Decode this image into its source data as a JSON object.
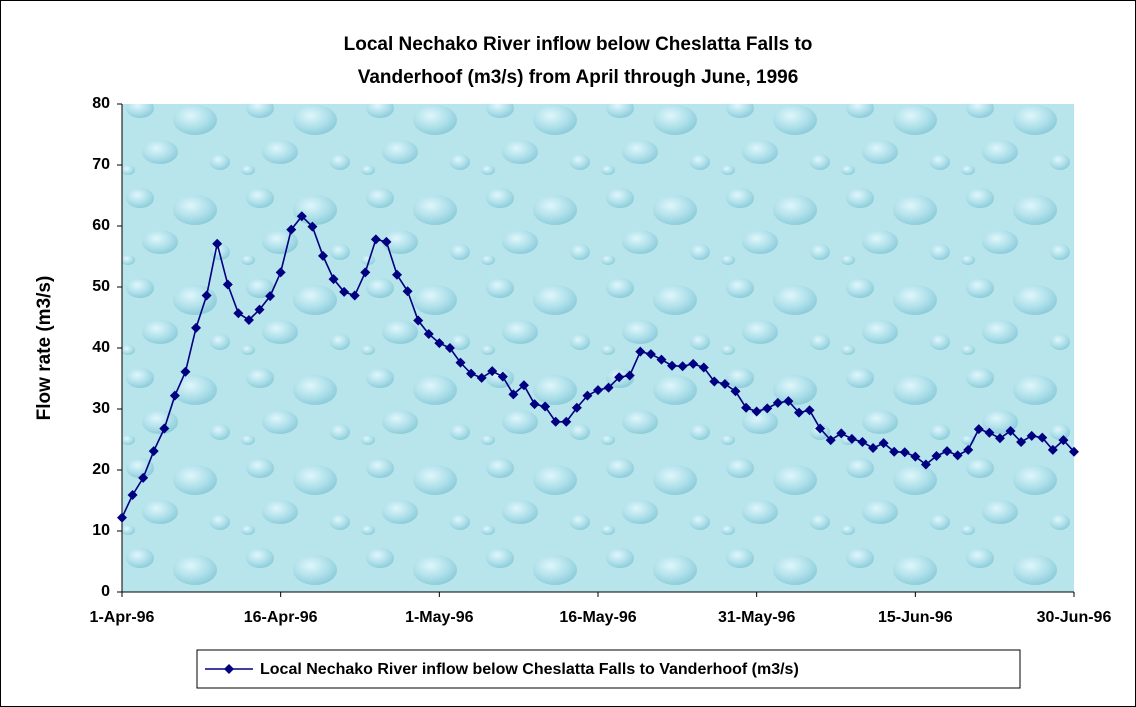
{
  "chart_data": {
    "type": "line",
    "title_lines": [
      "Local Nechako River inflow below Cheslatta Falls to",
      "Vanderhoof (m3/s) from April  through June, 1996"
    ],
    "y_label": "Flow rate (m3/s)",
    "categories": [
      "1-Apr-96",
      null,
      null,
      null,
      null,
      null,
      null,
      null,
      null,
      null,
      null,
      null,
      null,
      null,
      null,
      "16-Apr-96",
      null,
      null,
      null,
      null,
      null,
      null,
      null,
      null,
      null,
      null,
      null,
      null,
      null,
      null,
      "1-May-96",
      null,
      null,
      null,
      null,
      null,
      null,
      null,
      null,
      null,
      null,
      null,
      null,
      null,
      null,
      "16-May-96",
      null,
      null,
      null,
      null,
      null,
      null,
      null,
      null,
      null,
      null,
      null,
      null,
      null,
      null,
      "31-May-96",
      null,
      null,
      null,
      null,
      null,
      null,
      null,
      null,
      null,
      null,
      null,
      null,
      null,
      null,
      "15-Jun-96",
      null,
      null,
      null,
      null,
      null,
      null,
      null,
      null,
      null,
      null,
      null,
      null,
      null,
      null,
      "30-Jun-96"
    ],
    "series": [
      {
        "name": "Local Nechako River inflow below Cheslatta Falls to Vanderhoof (m3/s)",
        "color": "#000080",
        "values": [
          12.2,
          15.9,
          18.7,
          23.1,
          26.8,
          32.2,
          36.1,
          43.3,
          48.6,
          57.1,
          50.4,
          45.7,
          44.6,
          46.3,
          48.5,
          52.4,
          59.4,
          61.6,
          59.9,
          55.1,
          51.3,
          49.2,
          48.6,
          52.4,
          57.8,
          57.4,
          52.0,
          49.3,
          44.5,
          42.3,
          40.8,
          40.0,
          37.6,
          35.8,
          35.1,
          36.2,
          35.3,
          32.4,
          33.9,
          30.8,
          30.4,
          27.9,
          27.9,
          30.2,
          32.2,
          33.1,
          33.5,
          35.2,
          35.5,
          39.4,
          39.0,
          38.1,
          37.1,
          37.0,
          37.4,
          36.8,
          34.5,
          34.1,
          32.9,
          30.2,
          29.6,
          30.1,
          31.0,
          31.3,
          29.4,
          29.8,
          26.8,
          24.9,
          26.0,
          25.1,
          24.6,
          23.6,
          24.4,
          23.0,
          22.9,
          22.2,
          20.9,
          22.3,
          23.1,
          22.4,
          23.3,
          26.7,
          26.1,
          25.2,
          26.4,
          24.6,
          25.6,
          25.3,
          23.3,
          24.9,
          23.0
        ]
      }
    ],
    "ylim": [
      0,
      80
    ],
    "yticks": [
      0,
      10,
      20,
      30,
      40,
      50,
      60,
      70,
      80
    ],
    "legend": "bottom"
  }
}
